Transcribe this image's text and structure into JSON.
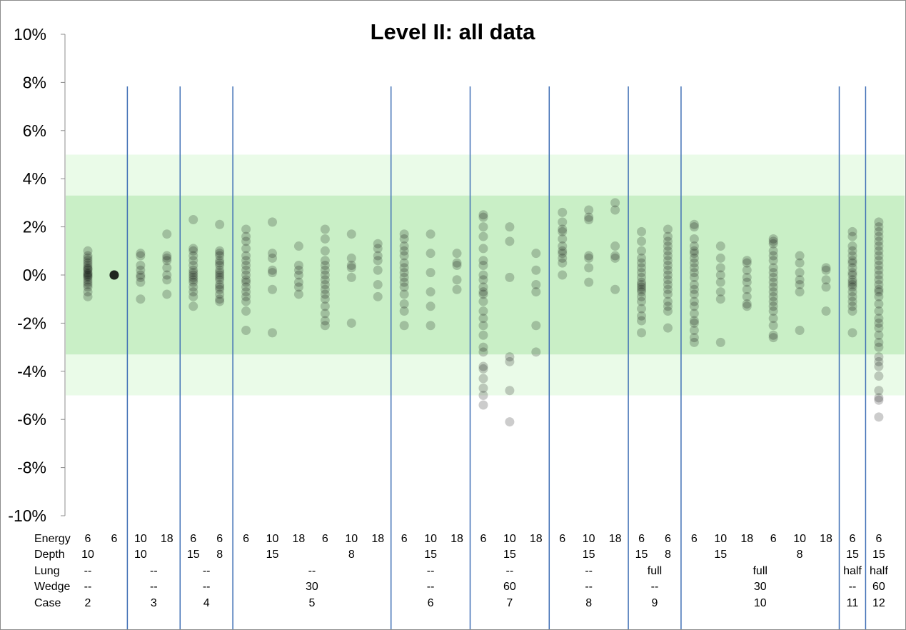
{
  "chart_data": {
    "type": "scatter",
    "title": "Level II: all data",
    "y_tick_labels": [
      "10%",
      "8%",
      "6%",
      "4%",
      "2%",
      "0%",
      "-2%",
      "-4%",
      "-6%",
      "-8%",
      "-10%"
    ],
    "y_tick_values": [
      10,
      8,
      6,
      4,
      2,
      0,
      -2,
      -4,
      -6,
      -8,
      -10
    ],
    "ylim": [
      -10,
      10
    ],
    "grid": false,
    "bands": [
      {
        "from": -5,
        "to": 5,
        "color": "#eafbe8"
      },
      {
        "from": -3.3,
        "to": 3.3,
        "color": "#c9efc6"
      }
    ],
    "table_row_labels": [
      "Energy",
      "Depth",
      "Lung",
      "Wedge",
      "Case"
    ],
    "columns": [
      {
        "energy": "6",
        "depth": "10"
      },
      {
        "energy": "6",
        "depth": ""
      },
      {
        "energy": "10",
        "depth": "10"
      },
      {
        "energy": "18",
        "depth": ""
      },
      {
        "energy": "6",
        "depth": "15"
      },
      {
        "energy": "6",
        "depth": "8"
      },
      {
        "energy": "6",
        "depth": ""
      },
      {
        "energy": "10",
        "depth": "15"
      },
      {
        "energy": "18",
        "depth": ""
      },
      {
        "energy": "6",
        "depth": ""
      },
      {
        "energy": "10",
        "depth": "8"
      },
      {
        "energy": "18",
        "depth": ""
      },
      {
        "energy": "6",
        "depth": ""
      },
      {
        "energy": "10",
        "depth": "15"
      },
      {
        "energy": "18",
        "depth": ""
      },
      {
        "energy": "6",
        "depth": ""
      },
      {
        "energy": "10",
        "depth": "15"
      },
      {
        "energy": "18",
        "depth": ""
      },
      {
        "energy": "6",
        "depth": ""
      },
      {
        "energy": "10",
        "depth": "15"
      },
      {
        "energy": "18",
        "depth": ""
      },
      {
        "energy": "6",
        "depth": "15"
      },
      {
        "energy": "6",
        "depth": "8"
      },
      {
        "energy": "6",
        "depth": ""
      },
      {
        "energy": "10",
        "depth": "15"
      },
      {
        "energy": "18",
        "depth": ""
      },
      {
        "energy": "6",
        "depth": ""
      },
      {
        "energy": "10",
        "depth": "8"
      },
      {
        "energy": "18",
        "depth": ""
      },
      {
        "energy": "6",
        "depth": "15"
      },
      {
        "energy": "6",
        "depth": "15"
      }
    ],
    "groups": [
      {
        "case": "2",
        "lung": "--",
        "wedge": "--",
        "start_col": 0,
        "end_col": 0
      },
      {
        "case": "3",
        "lung": "--",
        "wedge": "--",
        "start_col": 2,
        "end_col": 3
      },
      {
        "case": "4",
        "lung": "--",
        "wedge": "--",
        "start_col": 4,
        "end_col": 5
      },
      {
        "case": "5",
        "lung": "--",
        "wedge": "30",
        "start_col": 6,
        "end_col": 11
      },
      {
        "case": "6",
        "lung": "--",
        "wedge": "--",
        "start_col": 12,
        "end_col": 14
      },
      {
        "case": "7",
        "lung": "--",
        "wedge": "60",
        "start_col": 15,
        "end_col": 17
      },
      {
        "case": "8",
        "lung": "--",
        "wedge": "--",
        "start_col": 18,
        "end_col": 20
      },
      {
        "case": "9",
        "lung": "full",
        "wedge": "--",
        "start_col": 21,
        "end_col": 22
      },
      {
        "case": "10",
        "lung": "full",
        "wedge": "30",
        "start_col": 23,
        "end_col": 28
      },
      {
        "case": "11",
        "lung": "half",
        "wedge": "--",
        "start_col": 29,
        "end_col": 29
      },
      {
        "case": "12",
        "lung": "half",
        "wedge": "60",
        "start_col": 30,
        "end_col": 30
      }
    ],
    "separators_after_col": [
      1,
      3,
      5,
      11,
      14,
      17,
      20,
      22,
      28,
      29
    ],
    "series": [
      {
        "x": 0,
        "values": [
          1.0,
          0.8,
          0.7,
          0.6,
          0.5,
          0.4,
          0.3,
          0.25,
          0.2,
          0.1,
          0.05,
          0.0,
          -0.05,
          -0.1,
          -0.2,
          -0.3,
          -0.4,
          -0.5,
          -0.7,
          -0.9
        ]
      },
      {
        "x": 1,
        "values": [
          0.0,
          0.0,
          0.0,
          0.0,
          0.0,
          0.0,
          0.0,
          0.0
        ]
      },
      {
        "x": 2,
        "values": [
          0.9,
          0.8,
          0.4,
          0.2,
          0.0,
          -0.1,
          -0.3,
          -1.0
        ]
      },
      {
        "x": 3,
        "values": [
          1.7,
          0.8,
          0.7,
          0.6,
          0.3,
          0.0,
          -0.2,
          -0.8
        ]
      },
      {
        "x": 4,
        "values": [
          2.3,
          1.1,
          1.0,
          0.8,
          0.6,
          0.4,
          0.2,
          0.1,
          0.0,
          -0.1,
          -0.2,
          -0.3,
          -0.5,
          -0.7,
          -0.9,
          -1.3
        ]
      },
      {
        "x": 5,
        "values": [
          2.1,
          1.0,
          0.9,
          0.8,
          0.6,
          0.5,
          0.4,
          0.2,
          0.1,
          0.0,
          -0.1,
          -0.2,
          -0.4,
          -0.5,
          -0.6,
          -0.8,
          -1.0,
          -1.1
        ]
      },
      {
        "x": 6,
        "values": [
          1.9,
          1.6,
          1.4,
          1.1,
          0.8,
          0.6,
          0.4,
          0.2,
          0.0,
          -0.2,
          -0.3,
          -0.5,
          -0.7,
          -0.9,
          -1.1,
          -1.5,
          -2.3
        ]
      },
      {
        "x": 7,
        "values": [
          2.2,
          0.9,
          0.7,
          0.2,
          0.1,
          -0.6,
          -2.4
        ]
      },
      {
        "x": 8,
        "values": [
          1.2,
          0.4,
          0.2,
          0.0,
          -0.3,
          -0.5,
          -0.8
        ]
      },
      {
        "x": 9,
        "values": [
          1.9,
          1.5,
          1.0,
          0.6,
          0.4,
          0.2,
          0.0,
          -0.2,
          -0.4,
          -0.6,
          -0.8,
          -1.0,
          -1.3,
          -1.6,
          -1.9,
          -2.1
        ]
      },
      {
        "x": 10,
        "values": [
          1.7,
          0.7,
          0.4,
          0.3,
          -0.1,
          -2.0
        ]
      },
      {
        "x": 11,
        "values": [
          1.3,
          1.1,
          0.8,
          0.6,
          0.2,
          -0.4,
          -0.9
        ]
      },
      {
        "x": 12,
        "values": [
          1.7,
          1.5,
          1.2,
          1.0,
          0.8,
          0.5,
          0.3,
          0.1,
          -0.1,
          -0.3,
          -0.5,
          -0.8,
          -1.2,
          -1.5,
          -2.1
        ]
      },
      {
        "x": 13,
        "values": [
          1.7,
          0.9,
          0.1,
          -0.7,
          -1.3,
          -2.1
        ]
      },
      {
        "x": 14,
        "values": [
          0.9,
          0.5,
          0.4,
          -0.2,
          -0.6
        ]
      },
      {
        "x": 15,
        "values": [
          2.5,
          2.4,
          2.0,
          1.6,
          1.1,
          0.6,
          0.4,
          0.0,
          -0.2,
          -0.5,
          -0.7,
          -0.8,
          -1.1,
          -1.5,
          -1.8,
          -2.1,
          -2.5,
          -3.0,
          -3.2,
          -3.8,
          -3.9,
          -4.3,
          -4.7,
          -5.0,
          -5.4
        ]
      },
      {
        "x": 16,
        "values": [
          2.0,
          1.4,
          -0.1,
          -3.4,
          -3.6,
          -4.8,
          -6.1
        ]
      },
      {
        "x": 17,
        "values": [
          0.9,
          0.2,
          -0.4,
          -0.7,
          -2.1,
          -3.2
        ]
      },
      {
        "x": 18,
        "values": [
          2.6,
          2.2,
          1.9,
          1.8,
          1.5,
          1.2,
          1.0,
          0.9,
          0.7,
          0.5,
          0.0
        ]
      },
      {
        "x": 19,
        "values": [
          2.7,
          2.4,
          2.3,
          0.8,
          0.7,
          0.3,
          -0.3
        ]
      },
      {
        "x": 20,
        "values": [
          3.0,
          2.7,
          1.2,
          0.8,
          0.7,
          -0.6
        ]
      },
      {
        "x": 21,
        "values": [
          1.8,
          1.4,
          1.0,
          0.7,
          0.5,
          0.3,
          0.1,
          -0.1,
          -0.3,
          -0.4,
          -0.5,
          -0.6,
          -0.7,
          -0.9,
          -1.1,
          -1.4,
          -1.7,
          -1.9,
          -2.4
        ]
      },
      {
        "x": 22,
        "values": [
          1.9,
          1.6,
          1.4,
          1.2,
          1.0,
          0.8,
          0.6,
          0.4,
          0.2,
          0.0,
          -0.2,
          -0.4,
          -0.6,
          -0.8,
          -1.1,
          -1.3,
          -1.5,
          -2.2
        ]
      },
      {
        "x": 23,
        "values": [
          2.1,
          2.0,
          1.5,
          1.2,
          1.0,
          0.9,
          0.7,
          0.5,
          0.3,
          0.1,
          -0.1,
          -0.4,
          -0.6,
          -0.8,
          -1.1,
          -1.3,
          -1.6,
          -1.9,
          -2.0,
          -2.3,
          -2.6,
          -2.8
        ]
      },
      {
        "x": 24,
        "values": [
          1.2,
          0.7,
          0.3,
          0.0,
          -0.3,
          -0.7,
          -1.0,
          -2.8
        ]
      },
      {
        "x": 25,
        "values": [
          0.6,
          0.5,
          0.2,
          -0.1,
          -0.3,
          -0.6,
          -0.9,
          -1.2,
          -1.3
        ]
      },
      {
        "x": 26,
        "values": [
          1.5,
          1.4,
          1.3,
          1.0,
          0.8,
          0.6,
          0.3,
          0.1,
          -0.1,
          -0.3,
          -0.5,
          -0.7,
          -0.9,
          -1.1,
          -1.3,
          -1.5,
          -1.8,
          -2.1,
          -2.5,
          -2.6
        ]
      },
      {
        "x": 27,
        "values": [
          0.8,
          0.5,
          0.1,
          -0.2,
          -0.4,
          -0.7,
          -2.3
        ]
      },
      {
        "x": 28,
        "values": [
          0.3,
          0.2,
          -0.2,
          -0.5,
          -1.5
        ]
      },
      {
        "x": 29,
        "values": [
          1.8,
          1.6,
          1.2,
          1.0,
          0.8,
          0.6,
          0.5,
          0.3,
          0.1,
          0.0,
          -0.2,
          -0.3,
          -0.4,
          -0.5,
          -0.7,
          -0.9,
          -1.1,
          -1.3,
          -1.5,
          -2.4
        ]
      },
      {
        "x": 30,
        "values": [
          2.2,
          2.0,
          1.8,
          1.6,
          1.4,
          1.2,
          1.0,
          0.8,
          0.6,
          0.4,
          0.2,
          0.0,
          -0.2,
          -0.4,
          -0.6,
          -0.7,
          -0.9,
          -1.2,
          -1.5,
          -1.8,
          -2.0,
          -2.2,
          -2.5,
          -2.8,
          -3.0,
          -3.4,
          -3.6,
          -3.8,
          -4.2,
          -4.8,
          -5.1,
          -5.2,
          -5.9
        ]
      }
    ],
    "marker_color": "#000000",
    "marker_opacity": 0.2,
    "separator_color": "#3f6fb5"
  }
}
